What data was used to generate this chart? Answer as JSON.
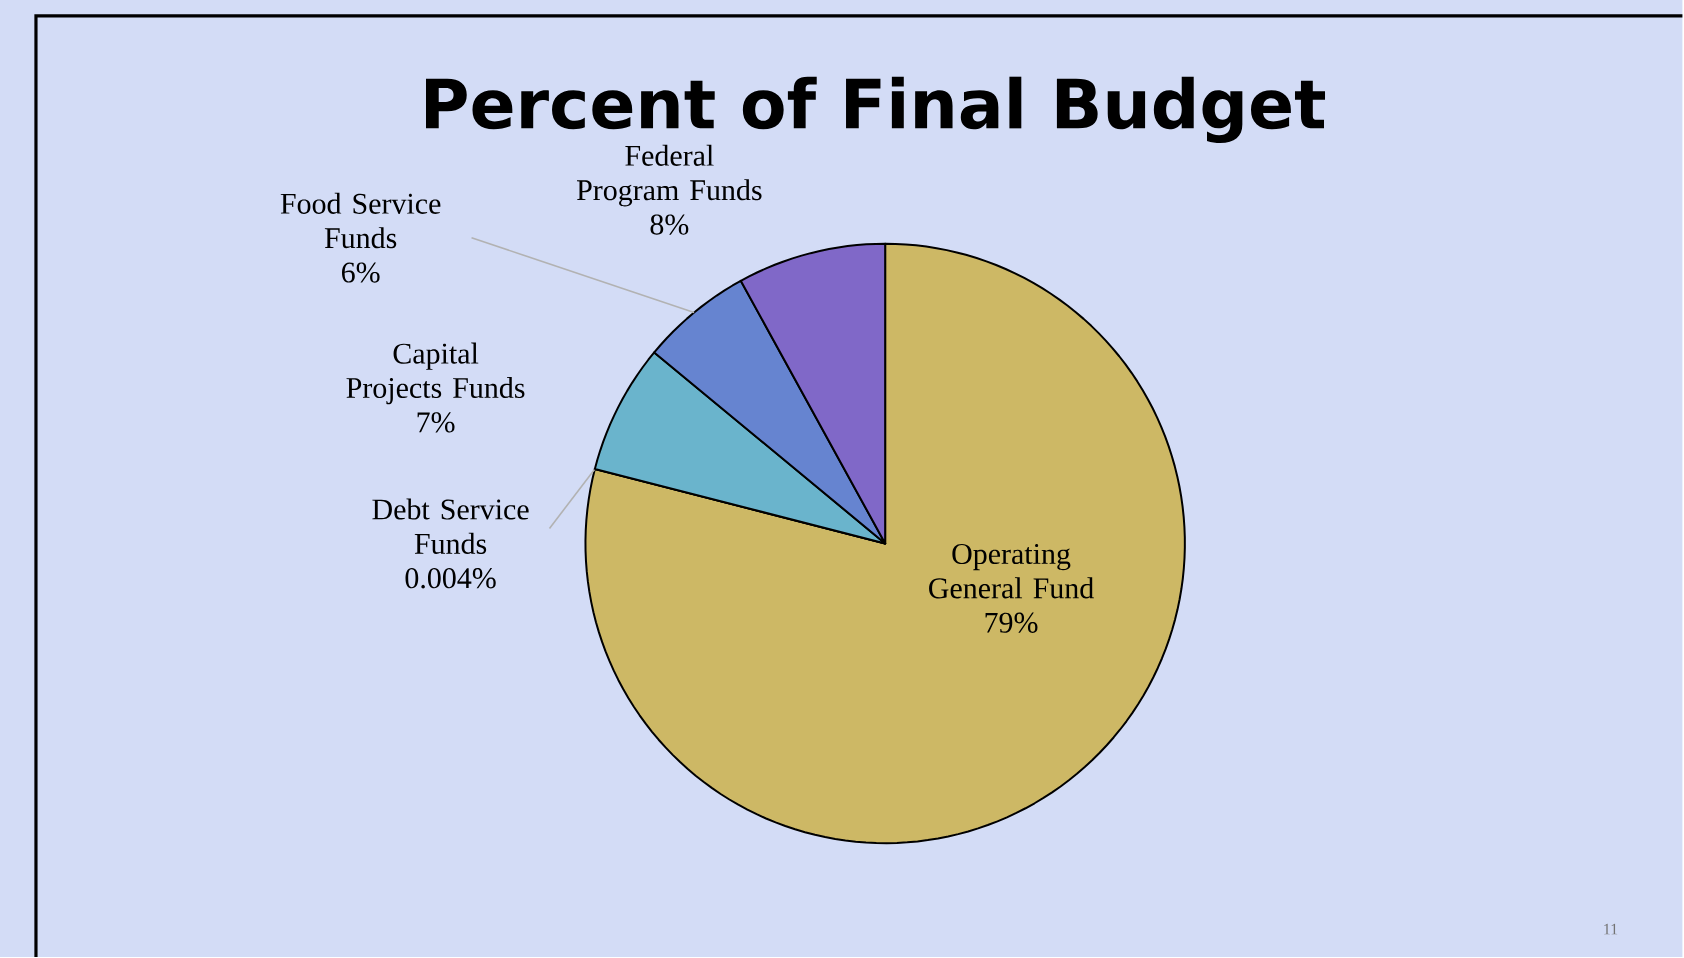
{
  "chart_data": {
    "type": "pie",
    "title": "Percent of Final Budget",
    "categories": [
      "Operating General Fund",
      "Debt Service Funds",
      "Capital Projects Funds",
      "Food Service Funds",
      "Federal Program Funds"
    ],
    "values": [
      79,
      0.004,
      7,
      6,
      8
    ],
    "value_labels": [
      "79%",
      "0.004%",
      "7%",
      "6%",
      "8%"
    ],
    "colors": [
      "#cdb865",
      "#4e7a58",
      "#6ab4cc",
      "#6684d0",
      "#8068c8"
    ],
    "annotations": [
      "11"
    ]
  }
}
